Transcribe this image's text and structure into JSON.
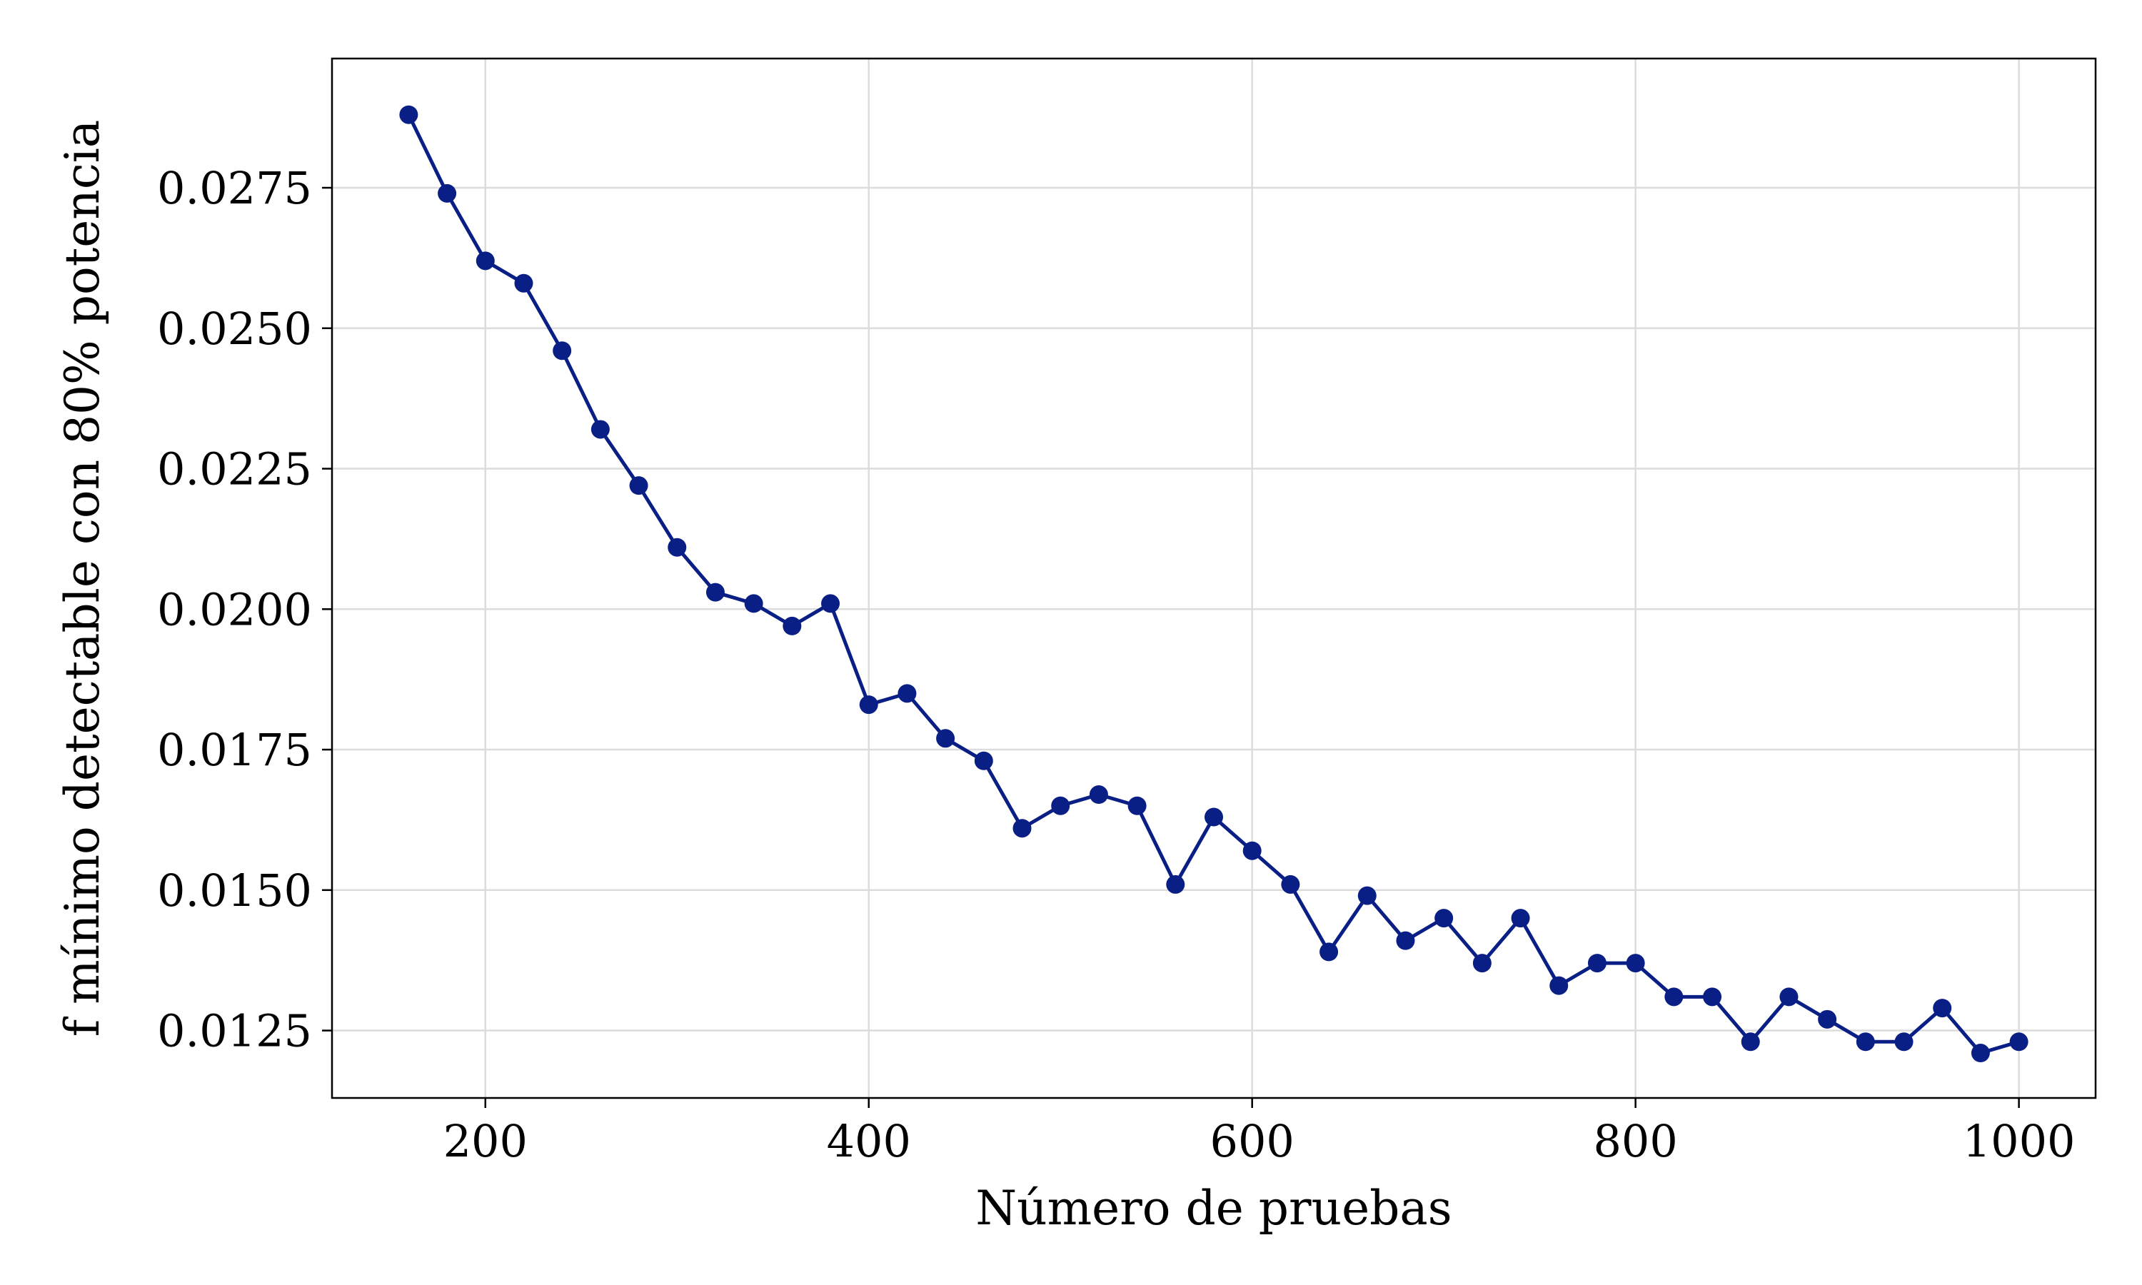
{
  "chart_data": {
    "type": "line",
    "title": "",
    "xlabel": "Número de pruebas",
    "ylabel": "f mínimo detectable con 80% potencia",
    "xlim": [
      120,
      1040
    ],
    "ylim": [
      0.0113,
      0.0298
    ],
    "xticks": [
      200,
      400,
      600,
      800,
      1000
    ],
    "xtick_labels": [
      "200",
      "400",
      "600",
      "800",
      "1000"
    ],
    "yticks": [
      0.0125,
      0.015,
      0.0175,
      0.02,
      0.0225,
      0.025,
      0.0275
    ],
    "ytick_labels": [
      "0.0125",
      "0.0150",
      "0.0175",
      "0.0200",
      "0.0225",
      "0.0250",
      "0.0275"
    ],
    "grid": true,
    "legend": "none",
    "series": [
      {
        "color": "#0a1f85",
        "marker": "circle",
        "x": [
          160,
          180,
          200,
          220,
          240,
          260,
          280,
          300,
          320,
          340,
          360,
          380,
          400,
          420,
          440,
          460,
          480,
          500,
          520,
          540,
          560,
          580,
          600,
          620,
          640,
          660,
          680,
          700,
          720,
          740,
          760,
          780,
          800,
          820,
          840,
          860,
          880,
          900,
          920,
          940,
          960,
          980,
          1000
        ],
        "y": [
          0.0288,
          0.0274,
          0.0262,
          0.0258,
          0.0246,
          0.0232,
          0.0222,
          0.0211,
          0.0203,
          0.0201,
          0.0197,
          0.0201,
          0.0183,
          0.0185,
          0.0177,
          0.0173,
          0.0161,
          0.0165,
          0.0167,
          0.0165,
          0.0151,
          0.0163,
          0.0157,
          0.0151,
          0.0139,
          0.0149,
          0.0141,
          0.0145,
          0.0137,
          0.0145,
          0.0133,
          0.0137,
          0.0137,
          0.0131,
          0.0131,
          0.0123,
          0.0131,
          0.0127,
          0.0123,
          0.0123,
          0.0129,
          0.0121,
          0.0123
        ]
      }
    ]
  }
}
